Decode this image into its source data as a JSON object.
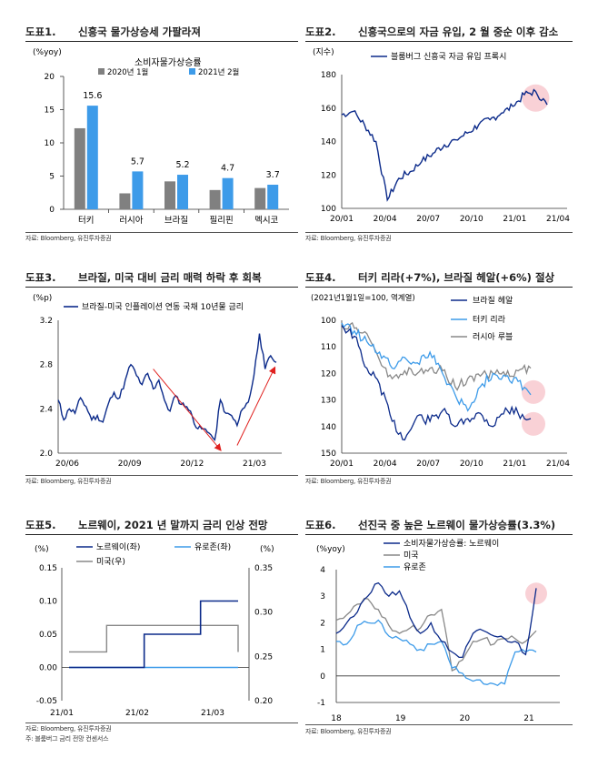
{
  "colors": {
    "dark_blue": "#0b2a8a",
    "light_blue": "#3d9be9",
    "gray": "#888888",
    "red": "#e0201e",
    "highlight": "#f7c6cc",
    "bar_gray": "#808080",
    "bar_blue": "#3d9be9"
  },
  "panels": [
    {
      "title_num": "도표1.",
      "title": "신흥국 물가상승세 가팔라져",
      "source": "자료: Bloomberg, 유진투자증권"
    },
    {
      "title_num": "도표2.",
      "title": "신흥국으로의 자금 유입, 2 월 중순 이후 감소",
      "source": "자료: Bloomberg, 유진투자증권"
    },
    {
      "title_num": "도표3.",
      "title": "브라질, 미국 대비 금리 매력 하락 후 회복",
      "source": "자료: Bloomberg, 유진투자증권"
    },
    {
      "title_num": "도표4.",
      "title": "터키 리라(+7%), 브라질 헤알(+6%) 절상",
      "source": "자료: Bloomberg, 유진투자증권"
    },
    {
      "title_num": "도표5.",
      "title": "노르웨이, 2021 년 말까지 금리 인상 전망",
      "source": "자료: Bloomberg, 유진투자증권",
      "note": "주: 블룸버그 금리 전망 컨센서스"
    },
    {
      "title_num": "도표6.",
      "title": "선진국 중 높은 노르웨이 물가상승률(3.3%)",
      "source": "자료: Bloomberg, 유진투자증권"
    }
  ],
  "chart_data": [
    {
      "type": "bar",
      "unit_label": "(%yoy)",
      "subtitle": "소비자물가상승률",
      "categories": [
        "터키",
        "러시아",
        "브라질",
        "필리핀",
        "멕시코"
      ],
      "series": [
        {
          "name": "2020년 1월",
          "values": [
            12.2,
            2.4,
            4.2,
            2.9,
            3.2
          ]
        },
        {
          "name": "2021년 2월",
          "values": [
            15.6,
            5.7,
            5.2,
            4.7,
            3.7
          ]
        }
      ],
      "data_labels": [
        "15.6",
        "5.7",
        "5.2",
        "4.7",
        "3.7"
      ],
      "ylim": [
        0,
        20
      ],
      "yticks": [
        "0",
        "5",
        "10",
        "15",
        "20"
      ]
    },
    {
      "type": "line",
      "unit_label": "(지수)",
      "xticks": [
        "20/01",
        "20/04",
        "20/07",
        "20/10",
        "21/01",
        "21/04"
      ],
      "yticks": [
        "100",
        "120",
        "140",
        "160",
        "180"
      ],
      "ylim": [
        100,
        180
      ],
      "series": [
        {
          "name": "블룸버그 신흥국 자금 유입 프록시",
          "x": [
            0,
            1,
            2,
            3,
            4,
            5,
            6,
            7,
            8,
            9,
            10,
            11,
            12,
            13,
            14,
            15,
            16,
            17,
            18
          ],
          "values": [
            156,
            158,
            150,
            140,
            105,
            118,
            122,
            128,
            133,
            138,
            141,
            145,
            150,
            153,
            157,
            161,
            168,
            170,
            162
          ]
        }
      ]
    },
    {
      "type": "line",
      "unit_label": "(%p)",
      "xticks": [
        "20/06",
        "20/09",
        "20/12",
        "21/03"
      ],
      "yticks": [
        "2.0",
        "2.4",
        "2.8",
        "3.2"
      ],
      "ylim": [
        2.0,
        3.2
      ],
      "series": [
        {
          "name": "브라질-미국 인플레이션 연동 국채 10년물 금리",
          "x": [
            0,
            1,
            2,
            3,
            4,
            5,
            6,
            7,
            8,
            9,
            10,
            11,
            12,
            13,
            14,
            15,
            16,
            17,
            18,
            19,
            20,
            21,
            22,
            23,
            24,
            25,
            26,
            27,
            28,
            29,
            30,
            31,
            32,
            33,
            34,
            35,
            36,
            37,
            38,
            39
          ],
          "values": [
            2.48,
            2.3,
            2.4,
            2.36,
            2.5,
            2.42,
            2.3,
            2.34,
            2.28,
            2.45,
            2.55,
            2.5,
            2.66,
            2.8,
            2.7,
            2.62,
            2.72,
            2.58,
            2.66,
            2.48,
            2.38,
            2.52,
            2.44,
            2.42,
            2.33,
            2.22,
            2.22,
            2.18,
            2.12,
            2.48,
            2.36,
            2.34,
            2.25,
            2.4,
            2.46,
            2.7,
            3.08,
            2.76,
            2.88,
            2.82
          ]
        }
      ]
    },
    {
      "type": "line",
      "unit_label": "(2021년1월1일=100, 역계열)",
      "xticks": [
        "20/01",
        "20/04",
        "20/07",
        "20/10",
        "21/01",
        "21/04"
      ],
      "yticks": [
        "100",
        "110",
        "120",
        "130",
        "140",
        "150"
      ],
      "ylim": [
        100,
        150
      ],
      "series": [
        {
          "name": "브라질 헤알",
          "x": [
            0,
            1,
            2,
            3,
            4,
            5,
            6,
            7,
            8,
            9,
            10,
            11,
            12,
            13,
            14,
            15
          ],
          "values": [
            102,
            106,
            118,
            124,
            138,
            145,
            136,
            138,
            134,
            140,
            137,
            135,
            140,
            133,
            135,
            137
          ]
        },
        {
          "name": "터키 리라",
          "x": [
            0,
            1,
            2,
            3,
            4,
            5,
            6,
            7,
            8,
            9,
            10,
            11,
            12,
            13,
            14,
            15
          ],
          "values": [
            101,
            104,
            108,
            112,
            118,
            114,
            116,
            112,
            120,
            128,
            134,
            125,
            120,
            121,
            123,
            128
          ]
        },
        {
          "name": "러시아 루블",
          "x": [
            0,
            1,
            2,
            3,
            4,
            5,
            6,
            7,
            8,
            9,
            10,
            11,
            12,
            13,
            14,
            15
          ],
          "values": [
            101,
            103,
            105,
            115,
            122,
            119,
            120,
            118,
            119,
            125,
            122,
            121,
            120,
            121,
            119,
            118
          ]
        }
      ]
    },
    {
      "type": "line",
      "left_unit": "(%)",
      "right_unit": "(%)",
      "xticks": [
        "21/01",
        "21/02",
        "21/03"
      ],
      "yticks_left": [
        "-0.05",
        "0.00",
        "0.05",
        "0.10",
        "0.15"
      ],
      "yticks_right": [
        "0.20",
        "0.25",
        "0.30",
        "0.35"
      ],
      "ylim_left": [
        -0.05,
        0.15
      ],
      "ylim_right": [
        0.2,
        0.35
      ],
      "series": [
        {
          "name": "노르웨이(좌)",
          "axis": "left",
          "x": [
            0,
            1,
            2,
            3,
            4,
            5,
            6,
            7,
            8,
            9
          ],
          "values": [
            0.0,
            0.0,
            0.0,
            0.0,
            0.05,
            0.05,
            0.05,
            0.1,
            0.1,
            0.1
          ]
        },
        {
          "name": "유로존(좌)",
          "axis": "left",
          "x": [
            0,
            1,
            2,
            3,
            4,
            5,
            6,
            7,
            8,
            9
          ],
          "values": [
            0.0,
            0.0,
            0.0,
            0.0,
            0.0,
            0.0,
            0.0,
            0.0,
            0.0,
            0.0
          ]
        },
        {
          "name": "미국(우)",
          "axis": "right",
          "x": [
            0,
            1,
            2,
            3,
            4,
            5,
            6,
            7,
            8,
            9
          ],
          "values": [
            0.255,
            0.255,
            0.285,
            0.285,
            0.285,
            0.285,
            0.285,
            0.285,
            0.285,
            0.255
          ]
        }
      ]
    },
    {
      "type": "line",
      "unit_label": "(%yoy)",
      "xticks": [
        "18",
        "19",
        "20",
        "21"
      ],
      "yticks": [
        "-1",
        "0",
        "1",
        "2",
        "3",
        "4"
      ],
      "ylim": [
        -1,
        4
      ],
      "series": [
        {
          "name": "소비자물가상승률: 노르웨이",
          "x": [
            0,
            1,
            2,
            3,
            4,
            5,
            6,
            7,
            8,
            9,
            10,
            11,
            12,
            13,
            14,
            15,
            16,
            17,
            18,
            19
          ],
          "values": [
            1.6,
            2.0,
            2.4,
            3.0,
            3.5,
            3.0,
            3.2,
            2.2,
            1.6,
            2.0,
            1.3,
            0.9,
            0.7,
            1.6,
            1.7,
            1.5,
            1.4,
            1.3,
            0.8,
            3.3
          ]
        },
        {
          "name": "미국",
          "x": [
            0,
            1,
            2,
            3,
            4,
            5,
            6,
            7,
            8,
            9,
            10,
            11,
            12,
            13,
            14,
            15,
            16,
            17,
            18,
            19
          ],
          "values": [
            2.1,
            2.3,
            2.7,
            2.9,
            2.5,
            1.9,
            1.6,
            1.8,
            1.8,
            2.3,
            2.5,
            0.2,
            0.6,
            1.3,
            1.4,
            1.2,
            1.4,
            1.4,
            1.3,
            1.7
          ]
        },
        {
          "name": "유로존",
          "x": [
            0,
            1,
            2,
            3,
            4,
            5,
            6,
            7,
            8,
            9,
            10,
            11,
            12,
            13,
            14,
            15,
            16,
            17,
            18,
            19
          ],
          "values": [
            1.3,
            1.2,
            1.9,
            2.0,
            2.1,
            1.5,
            1.4,
            1.2,
            1.0,
            1.2,
            1.3,
            0.3,
            0.1,
            -0.2,
            -0.3,
            -0.3,
            -0.3,
            0.9,
            0.9,
            0.9
          ]
        }
      ]
    }
  ]
}
